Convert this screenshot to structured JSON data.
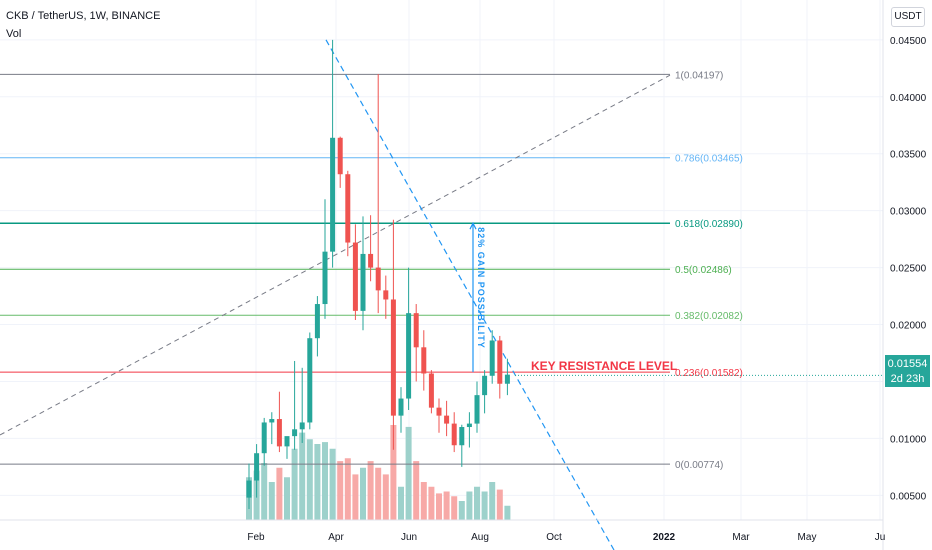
{
  "header": {
    "symbol_line": "CKB / TetherUS, 1W, BINANCE",
    "volume_label": "Vol"
  },
  "currency_button": "USDT",
  "last_price": {
    "value": "0.01554",
    "countdown": "2d 23h"
  },
  "colors": {
    "up": "#26a69a",
    "down": "#ef5350",
    "up_volume": "#9dd1cb",
    "down_volume": "#f7a9a7",
    "trend_line": "#2196f3",
    "dashed_line": "#787b86"
  },
  "chart_data": {
    "type": "candlestick",
    "x_tick_labels": [
      "Feb",
      "Apr",
      "Jun",
      "Aug",
      "Oct",
      "2022",
      "Mar",
      "May",
      "Ju"
    ],
    "y_tick_labels": [
      "0.04500",
      "0.04000",
      "0.03500",
      "0.03000",
      "0.02500",
      "0.02000",
      "0.01500",
      "0.01000",
      "0.00500"
    ],
    "y_ticks": [
      0.045,
      0.04,
      0.035,
      0.03,
      0.025,
      0.02,
      0.015,
      0.01,
      0.005
    ],
    "ylim": [
      0.0002,
      0.0485
    ],
    "candles": [
      {
        "o": 0.0048,
        "h": 0.0078,
        "l": 0.0038,
        "c": 0.0063
      },
      {
        "o": 0.0063,
        "h": 0.0095,
        "l": 0.0048,
        "c": 0.0087
      },
      {
        "o": 0.0087,
        "h": 0.0118,
        "l": 0.0076,
        "c": 0.0114
      },
      {
        "o": 0.0114,
        "h": 0.0123,
        "l": 0.0095,
        "c": 0.0117
      },
      {
        "o": 0.0117,
        "h": 0.0141,
        "l": 0.0088,
        "c": 0.0093
      },
      {
        "o": 0.0093,
        "h": 0.01,
        "l": 0.0082,
        "c": 0.0102
      },
      {
        "o": 0.0102,
        "h": 0.0168,
        "l": 0.009,
        "c": 0.0108
      },
      {
        "o": 0.0108,
        "h": 0.0162,
        "l": 0.0096,
        "c": 0.0114
      },
      {
        "o": 0.0114,
        "h": 0.0193,
        "l": 0.0108,
        "c": 0.0188
      },
      {
        "o": 0.0188,
        "h": 0.0225,
        "l": 0.0172,
        "c": 0.0218
      },
      {
        "o": 0.0218,
        "h": 0.031,
        "l": 0.0205,
        "c": 0.0264
      },
      {
        "o": 0.0264,
        "h": 0.045,
        "l": 0.025,
        "c": 0.0364
      },
      {
        "o": 0.0364,
        "h": 0.0365,
        "l": 0.032,
        "c": 0.0332
      },
      {
        "o": 0.0332,
        "h": 0.0335,
        "l": 0.026,
        "c": 0.0272
      },
      {
        "o": 0.0272,
        "h": 0.0288,
        "l": 0.0204,
        "c": 0.0212
      },
      {
        "o": 0.0212,
        "h": 0.0295,
        "l": 0.0195,
        "c": 0.0262
      },
      {
        "o": 0.0262,
        "h": 0.0296,
        "l": 0.0238,
        "c": 0.025
      },
      {
        "o": 0.025,
        "h": 0.042,
        "l": 0.021,
        "c": 0.023
      },
      {
        "o": 0.023,
        "h": 0.0243,
        "l": 0.0205,
        "c": 0.0222
      },
      {
        "o": 0.0222,
        "h": 0.0292,
        "l": 0.009,
        "c": 0.012
      },
      {
        "o": 0.012,
        "h": 0.0145,
        "l": 0.0105,
        "c": 0.0135
      },
      {
        "o": 0.0135,
        "h": 0.025,
        "l": 0.0125,
        "c": 0.021
      },
      {
        "o": 0.021,
        "h": 0.0218,
        "l": 0.015,
        "c": 0.018
      },
      {
        "o": 0.018,
        "h": 0.0195,
        "l": 0.0142,
        "c": 0.0157
      },
      {
        "o": 0.0157,
        "h": 0.016,
        "l": 0.0122,
        "c": 0.0127
      },
      {
        "o": 0.0127,
        "h": 0.0135,
        "l": 0.0105,
        "c": 0.012
      },
      {
        "o": 0.012,
        "h": 0.0133,
        "l": 0.0102,
        "c": 0.0113
      },
      {
        "o": 0.0113,
        "h": 0.0123,
        "l": 0.0088,
        "c": 0.0094
      },
      {
        "o": 0.0094,
        "h": 0.0112,
        "l": 0.0075,
        "c": 0.011
      },
      {
        "o": 0.011,
        "h": 0.0123,
        "l": 0.0092,
        "c": 0.0113
      },
      {
        "o": 0.0113,
        "h": 0.015,
        "l": 0.0105,
        "c": 0.0138
      },
      {
        "o": 0.0138,
        "h": 0.016,
        "l": 0.0122,
        "c": 0.0155
      },
      {
        "o": 0.0155,
        "h": 0.0195,
        "l": 0.0148,
        "c": 0.0186
      },
      {
        "o": 0.0186,
        "h": 0.019,
        "l": 0.0135,
        "c": 0.0148
      },
      {
        "o": 0.0148,
        "h": 0.017,
        "l": 0.0138,
        "c": 0.0156
      }
    ],
    "volume_relative": [
      0.45,
      0.52,
      0.6,
      0.4,
      0.55,
      0.45,
      0.75,
      0.92,
      0.85,
      0.8,
      0.82,
      0.75,
      0.62,
      0.65,
      0.48,
      0.55,
      0.62,
      0.55,
      0.48,
      1.0,
      0.35,
      0.98,
      0.62,
      0.4,
      0.35,
      0.28,
      0.3,
      0.25,
      0.2,
      0.3,
      0.35,
      0.3,
      0.4,
      0.32,
      0.15
    ],
    "fib_levels": [
      {
        "label": "1(0.04197)",
        "price": 0.04197,
        "color": "#787b86"
      },
      {
        "label": "0.786(0.03465)",
        "price": 0.03465,
        "color": "#64b5f6"
      },
      {
        "label": "0.618(0.02890)",
        "price": 0.0289,
        "color": "#089981"
      },
      {
        "label": "0.5(0.02486)",
        "price": 0.02486,
        "color": "#4caf50"
      },
      {
        "label": "0.382(0.02082)",
        "price": 0.02082,
        "color": "#66bb6a"
      },
      {
        "label": "0.236(0.01582)",
        "price": 0.01582,
        "color": "#f23645"
      },
      {
        "label": "0(0.00774)",
        "price": 0.00774,
        "color": "#787b86"
      }
    ],
    "annotations": {
      "key_resistance": "KEY RESISTANCE LEVEL",
      "gain_possibility": "82% GAIN POSSIBILITY"
    }
  }
}
